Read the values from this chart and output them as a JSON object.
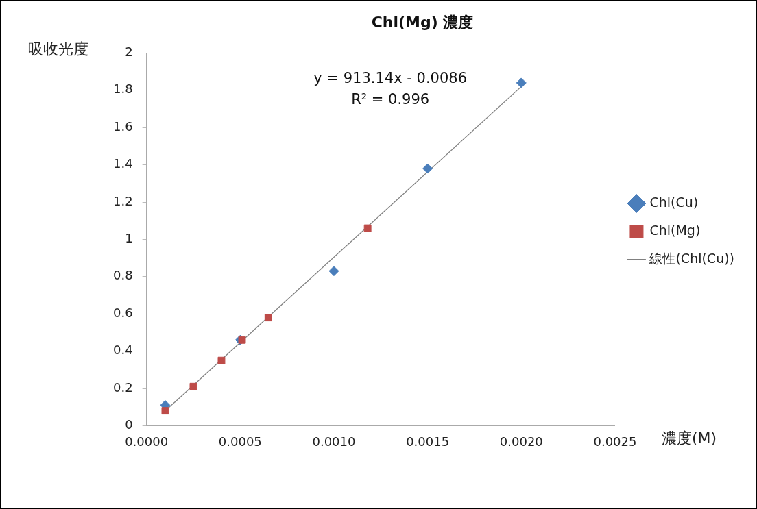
{
  "chart_data": {
    "type": "scatter",
    "title": "Chl(Mg) 濃度",
    "xlabel": "濃度(M)",
    "ylabel": "吸收光度",
    "xlim": [
      0,
      0.0025
    ],
    "xticks": [
      {
        "value": 0,
        "label": "0.0000"
      },
      {
        "value": 0.0005,
        "label": "0.0005"
      },
      {
        "value": 0.001,
        "label": "0.0010"
      },
      {
        "value": 0.0015,
        "label": "0.0015"
      },
      {
        "value": 0.002,
        "label": "0.0020"
      },
      {
        "value": 0.0025,
        "label": "0.0025"
      }
    ],
    "ylim": [
      0,
      2
    ],
    "yticks": [
      0,
      0.2,
      0.4,
      0.6,
      0.8,
      1,
      1.2,
      1.4,
      1.6,
      1.8,
      2
    ],
    "grid": false,
    "legend": "right",
    "annotations": [
      "y = 913.14x - 0.0086",
      "R² = 0.996"
    ],
    "series": [
      {
        "name": "Chl(Cu)",
        "color": "#4a7ebb",
        "marker": "diamond",
        "x": [
          0.0001,
          0.0005,
          0.001,
          0.0015,
          0.002
        ],
        "values": [
          0.11,
          0.46,
          0.83,
          1.38,
          1.84
        ]
      },
      {
        "name": "Chl(Mg)",
        "color": "#be4b48",
        "marker": "square",
        "x": [
          0.0001,
          0.00025,
          0.0004,
          0.00051,
          0.00065,
          0.00118
        ],
        "values": [
          0.08,
          0.21,
          0.35,
          0.46,
          0.58,
          1.06
        ]
      },
      {
        "name": "線性(Chl(Cu))",
        "type": "line",
        "color": "#808080",
        "marker": "none",
        "x": [
          0.0001,
          0.002
        ],
        "values": [
          0.08,
          1.82
        ]
      }
    ]
  }
}
